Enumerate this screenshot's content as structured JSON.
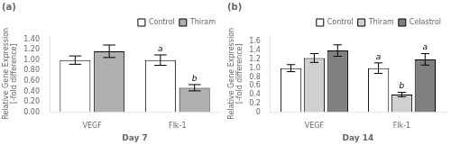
{
  "chart_data": [
    {
      "type": "bar",
      "title": "(a)",
      "xlabel": "Day 7",
      "ylabel": "Relative Gene Expression\n[-fold difference]",
      "categories": [
        "VEGF",
        "Flk-1"
      ],
      "series": [
        {
          "name": "Control",
          "color": "#ffffff",
          "values": [
            1.0,
            1.0
          ],
          "errors": [
            0.08,
            0.1
          ],
          "annotations": [
            null,
            "a"
          ]
        },
        {
          "name": "Thiram",
          "color": "#b0b0b0",
          "values": [
            1.17,
            0.47
          ],
          "errors": [
            0.12,
            0.06
          ],
          "annotations": [
            null,
            "b"
          ]
        }
      ],
      "ylim": [
        0,
        1.48
      ],
      "yticks": [
        {
          "value": 0.0,
          "label": "0.00"
        },
        {
          "value": 0.2,
          "label": "0.20"
        },
        {
          "value": 0.4,
          "label": "0.40"
        },
        {
          "value": 0.6,
          "label": "0.60"
        },
        {
          "value": 0.8,
          "label": "0.80"
        },
        {
          "value": 1.0,
          "label": "1.00"
        },
        {
          "value": 1.2,
          "label": "1.20"
        },
        {
          "value": 1.4,
          "label": "1.40"
        }
      ],
      "grid": false,
      "legend": "upper right"
    },
    {
      "type": "bar",
      "title": "(b)",
      "xlabel": "Day 14",
      "ylabel": "Relative Gene Expression\n[-fold difference]",
      "categories": [
        "VEGF",
        "Flk-1"
      ],
      "series": [
        {
          "name": "Control",
          "color": "#ffffff",
          "values": [
            1.0,
            1.0
          ],
          "errors": [
            0.08,
            0.12
          ],
          "annotations": [
            null,
            "a"
          ]
        },
        {
          "name": "Thiram",
          "color": "#d0d0d0",
          "values": [
            1.23,
            0.4
          ],
          "errors": [
            0.1,
            0.05
          ],
          "annotations": [
            null,
            "b"
          ]
        },
        {
          "name": "Celastrol",
          "color": "#808080",
          "values": [
            1.4,
            1.2
          ],
          "errors": [
            0.13,
            0.13
          ],
          "annotations": [
            null,
            "a"
          ]
        }
      ],
      "ylim": [
        0,
        1.75
      ],
      "yticks": [
        0,
        0.2,
        0.4,
        0.6,
        0.8,
        {
          "value": 1.0,
          "label": "1.0"
        },
        1.2,
        1.4,
        1.6
      ],
      "grid": false,
      "legend": "upper right"
    }
  ]
}
